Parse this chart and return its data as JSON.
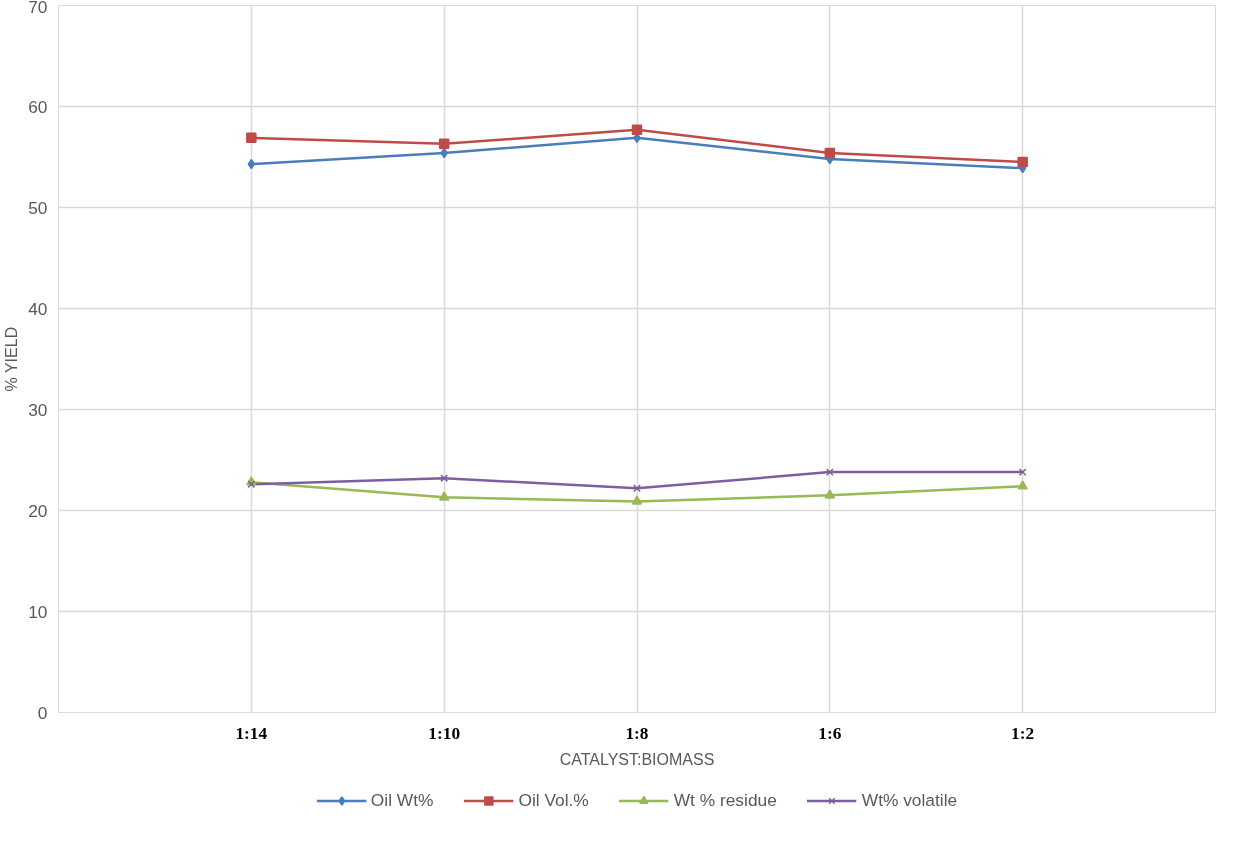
{
  "chart_data": {
    "type": "line",
    "xlabel": "CATALYST:BIOMASS",
    "ylabel": "% YIELD",
    "categories": [
      "1:14",
      "1:10",
      "1:8",
      "1:6",
      "1:2"
    ],
    "ylim": [
      0,
      70
    ],
    "yticks": [
      0,
      10,
      20,
      30,
      40,
      50,
      60,
      70
    ],
    "grid": true,
    "legend": "bottom",
    "line_style": "solid",
    "series": [
      {
        "name": "Oil Wt%",
        "color": "#4a7ebb",
        "marker": "diamond",
        "values": [
          54.3,
          55.4,
          56.9,
          54.8,
          53.9
        ]
      },
      {
        "name": "Oil Vol.%",
        "color": "#be4b48",
        "marker": "square",
        "values": [
          56.9,
          56.3,
          57.7,
          55.4,
          54.5
        ]
      },
      {
        "name": "Wt % residue",
        "color": "#98b954",
        "marker": "triangle",
        "values": [
          22.8,
          21.3,
          20.9,
          21.5,
          22.4
        ]
      },
      {
        "name": "Wt% volatile",
        "color": "#7d5fa0",
        "marker": "cross",
        "values": [
          22.6,
          23.2,
          22.2,
          23.8,
          23.8
        ]
      }
    ]
  }
}
